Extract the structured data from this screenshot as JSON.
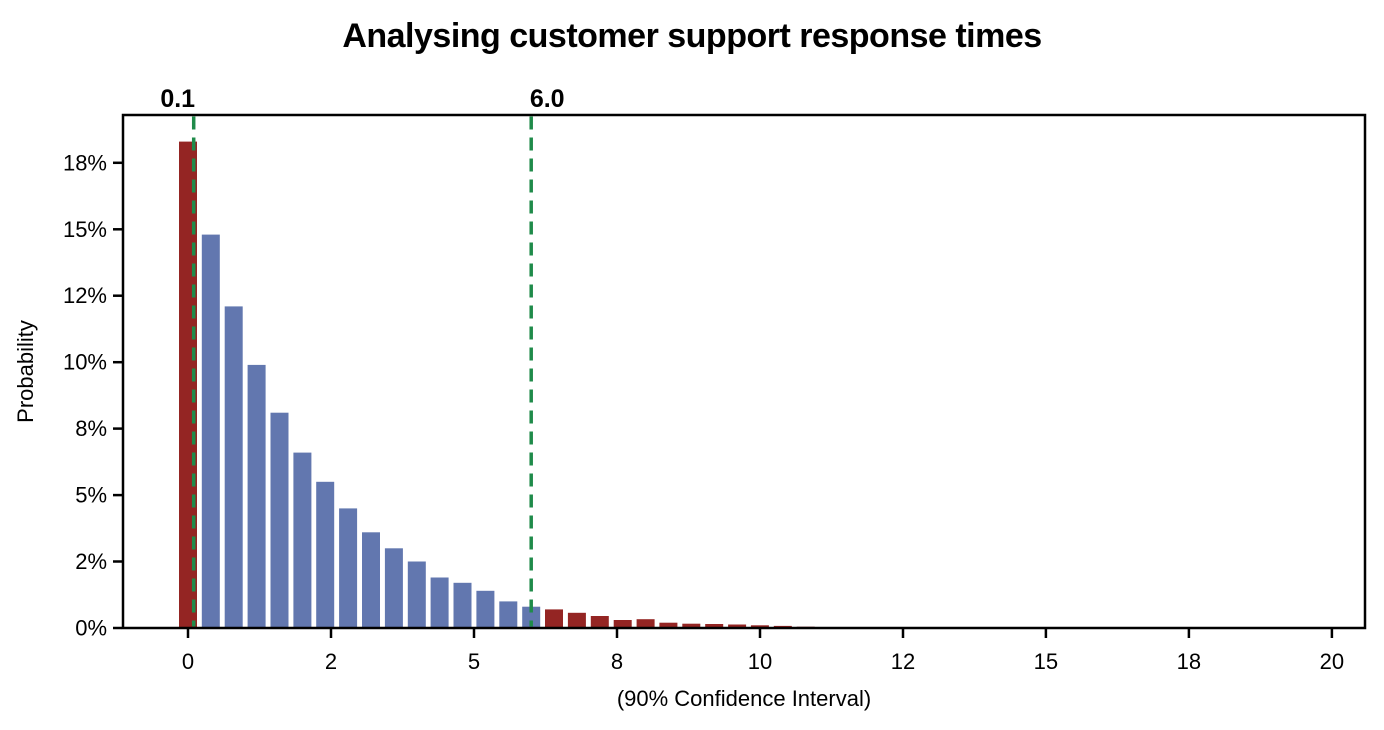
{
  "page": {
    "background_color": "#ffffff"
  },
  "chart_data": {
    "type": "bar",
    "title": "Analysing customer support response times",
    "xlabel": "(90% Confidence Interval)",
    "ylabel": "Probability",
    "grid": false,
    "legend": null,
    "confidence_interval": {
      "level": "90%",
      "lower_label": "0.1",
      "upper_label": "6.0",
      "lower_value": 0.1,
      "upper_value": 6.0,
      "line_style": "dashed",
      "line_color": "#1f8b4a"
    },
    "bars": {
      "bin_width": 0.4,
      "bar_width_units": 0.315,
      "centers": [
        0.0,
        0.4,
        0.8,
        1.2,
        1.6,
        2.0,
        2.4,
        2.8,
        3.2,
        3.6,
        4.0,
        4.4,
        4.8,
        5.2,
        5.6,
        6.0,
        6.4,
        6.8,
        7.2,
        7.6,
        8.0,
        8.4,
        8.8,
        9.2,
        9.6,
        10.0,
        10.4,
        10.8
      ],
      "probabilities_pct": [
        18.3,
        14.8,
        12.1,
        9.9,
        8.1,
        6.6,
        5.5,
        4.5,
        3.6,
        3.0,
        2.5,
        1.9,
        1.7,
        1.4,
        1.0,
        0.8,
        0.7,
        0.57,
        0.45,
        0.3,
        0.33,
        0.2,
        0.16,
        0.15,
        0.13,
        0.1,
        0.08,
        0.05
      ]
    },
    "colors": {
      "inside_interval": "#6277af",
      "outside_interval": "#942523",
      "axis": "#000000",
      "text": "#000000"
    },
    "xticks": {
      "values": [
        0,
        2.5,
        5,
        7.5,
        10,
        12.5,
        15,
        17.5,
        20
      ],
      "labels": [
        "0",
        "2",
        "5",
        "8",
        "10",
        "12",
        "15",
        "18",
        "20"
      ]
    },
    "yticks": {
      "values": [
        0,
        0.025,
        0.05,
        0.075,
        0.1,
        0.125,
        0.15,
        0.175
      ],
      "labels": [
        "0%",
        "2%",
        "5%",
        "8%",
        "10%",
        "12%",
        "15%",
        "18%"
      ]
    },
    "xlim": [
      -1.136,
      20.578
    ],
    "ylim": [
      0,
      0.193
    ]
  }
}
